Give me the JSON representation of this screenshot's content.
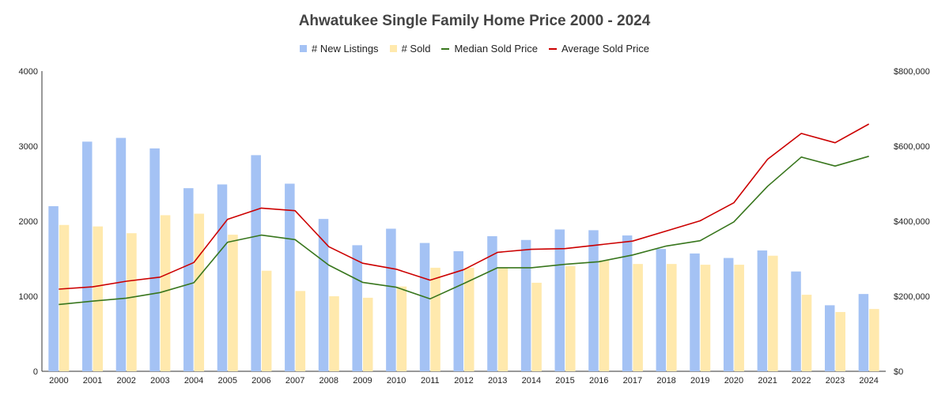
{
  "chart_data": {
    "type": "bar",
    "title": "Ahwatukee Single Family Home Price 2000 - 2024",
    "categories": [
      "2000",
      "2001",
      "2002",
      "2003",
      "2004",
      "2005",
      "2006",
      "2007",
      "2008",
      "2009",
      "2010",
      "2011",
      "2012",
      "2013",
      "2014",
      "2015",
      "2016",
      "2017",
      "2018",
      "2019",
      "2020",
      "2021",
      "2022",
      "2023",
      "2024"
    ],
    "series": [
      {
        "name": "# New Listings",
        "kind": "bar",
        "axis": "left",
        "color": "#a4c2f4",
        "values": [
          2200,
          3060,
          3110,
          2970,
          2440,
          2490,
          2880,
          2500,
          2030,
          1680,
          1900,
          1710,
          1600,
          1800,
          1750,
          1890,
          1880,
          1810,
          1630,
          1570,
          1510,
          1610,
          1330,
          880,
          1030
        ]
      },
      {
        "name": "# Sold",
        "kind": "bar",
        "axis": "left",
        "color": "#ffe9ad",
        "values": [
          1950,
          1930,
          1840,
          2080,
          2100,
          1820,
          1340,
          1070,
          1000,
          980,
          1130,
          1380,
          1380,
          1380,
          1180,
          1400,
          1480,
          1430,
          1430,
          1420,
          1420,
          1540,
          1020,
          790,
          830
        ]
      },
      {
        "name": "Median Sold Price",
        "kind": "line",
        "axis": "right",
        "color": "#38761d",
        "values": [
          178000,
          187000,
          195000,
          210000,
          236000,
          344000,
          363000,
          351000,
          283000,
          237000,
          224000,
          193000,
          234000,
          276000,
          276000,
          285000,
          292000,
          310000,
          334000,
          348000,
          398000,
          493000,
          571000,
          547000,
          573000
        ]
      },
      {
        "name": "Average Sold Price",
        "kind": "line",
        "axis": "right",
        "color": "#cc0000",
        "values": [
          219000,
          225000,
          240000,
          251000,
          290000,
          405000,
          435000,
          428000,
          332000,
          288000,
          272000,
          243000,
          271000,
          317000,
          325000,
          327000,
          337000,
          347000,
          374000,
          401000,
          449000,
          565000,
          634000,
          609000,
          659000
        ]
      }
    ],
    "y_left": {
      "ylim": [
        0,
        4000
      ],
      "ticks": [
        "0",
        "1000",
        "2000",
        "3000",
        "4000"
      ]
    },
    "y_right": {
      "ylim": [
        0,
        800000
      ],
      "ticks": [
        "$0",
        "$200,000",
        "$400,000",
        "$600,000",
        "$800,000"
      ]
    },
    "legend_position": "top",
    "grid": false
  }
}
